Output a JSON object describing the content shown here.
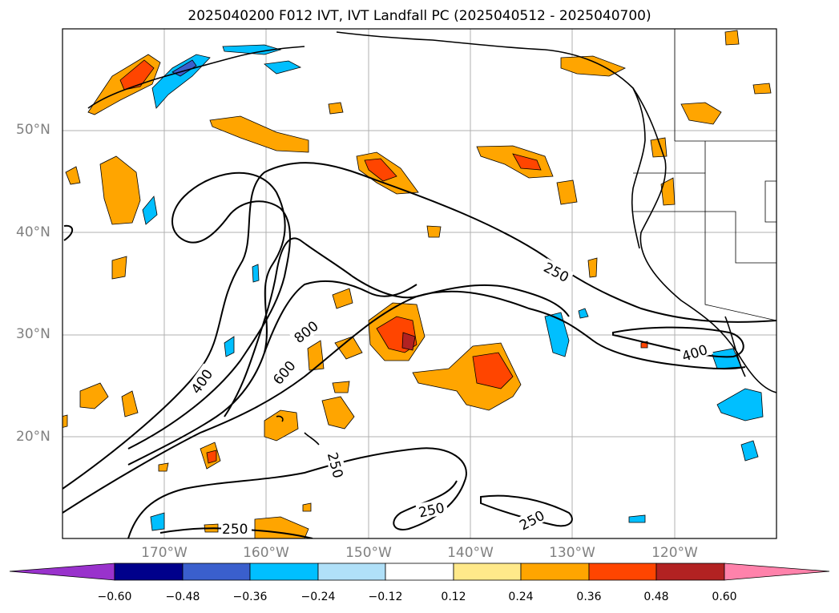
{
  "title": "2025040200 F012 IVT, IVT Landfall PC (2025040512 - 2025040700)",
  "lat_labels": [
    "50°N",
    "40°N",
    "30°N",
    "20°N"
  ],
  "lon_labels": [
    "170°W",
    "160°W",
    "150°W",
    "140°W",
    "130°W",
    "120°W"
  ],
  "contour_labels": [
    "250",
    "250",
    "400",
    "400",
    "600",
    "800",
    "250",
    "250",
    "250",
    "250"
  ],
  "colorbar": {
    "ticks": [
      "−0.60",
      "−0.48",
      "−0.36",
      "−0.24",
      "−0.12",
      "0.12",
      "0.24",
      "0.36",
      "0.48",
      "0.60"
    ],
    "colors": [
      "#9932cc",
      "#00008b",
      "#3a5fcd",
      "#00bfff",
      "#b0e0f8",
      "#ffffff",
      "#ffe98a",
      "#ffa500",
      "#ff4500",
      "#b22222",
      "#ff82ab"
    ]
  }
}
